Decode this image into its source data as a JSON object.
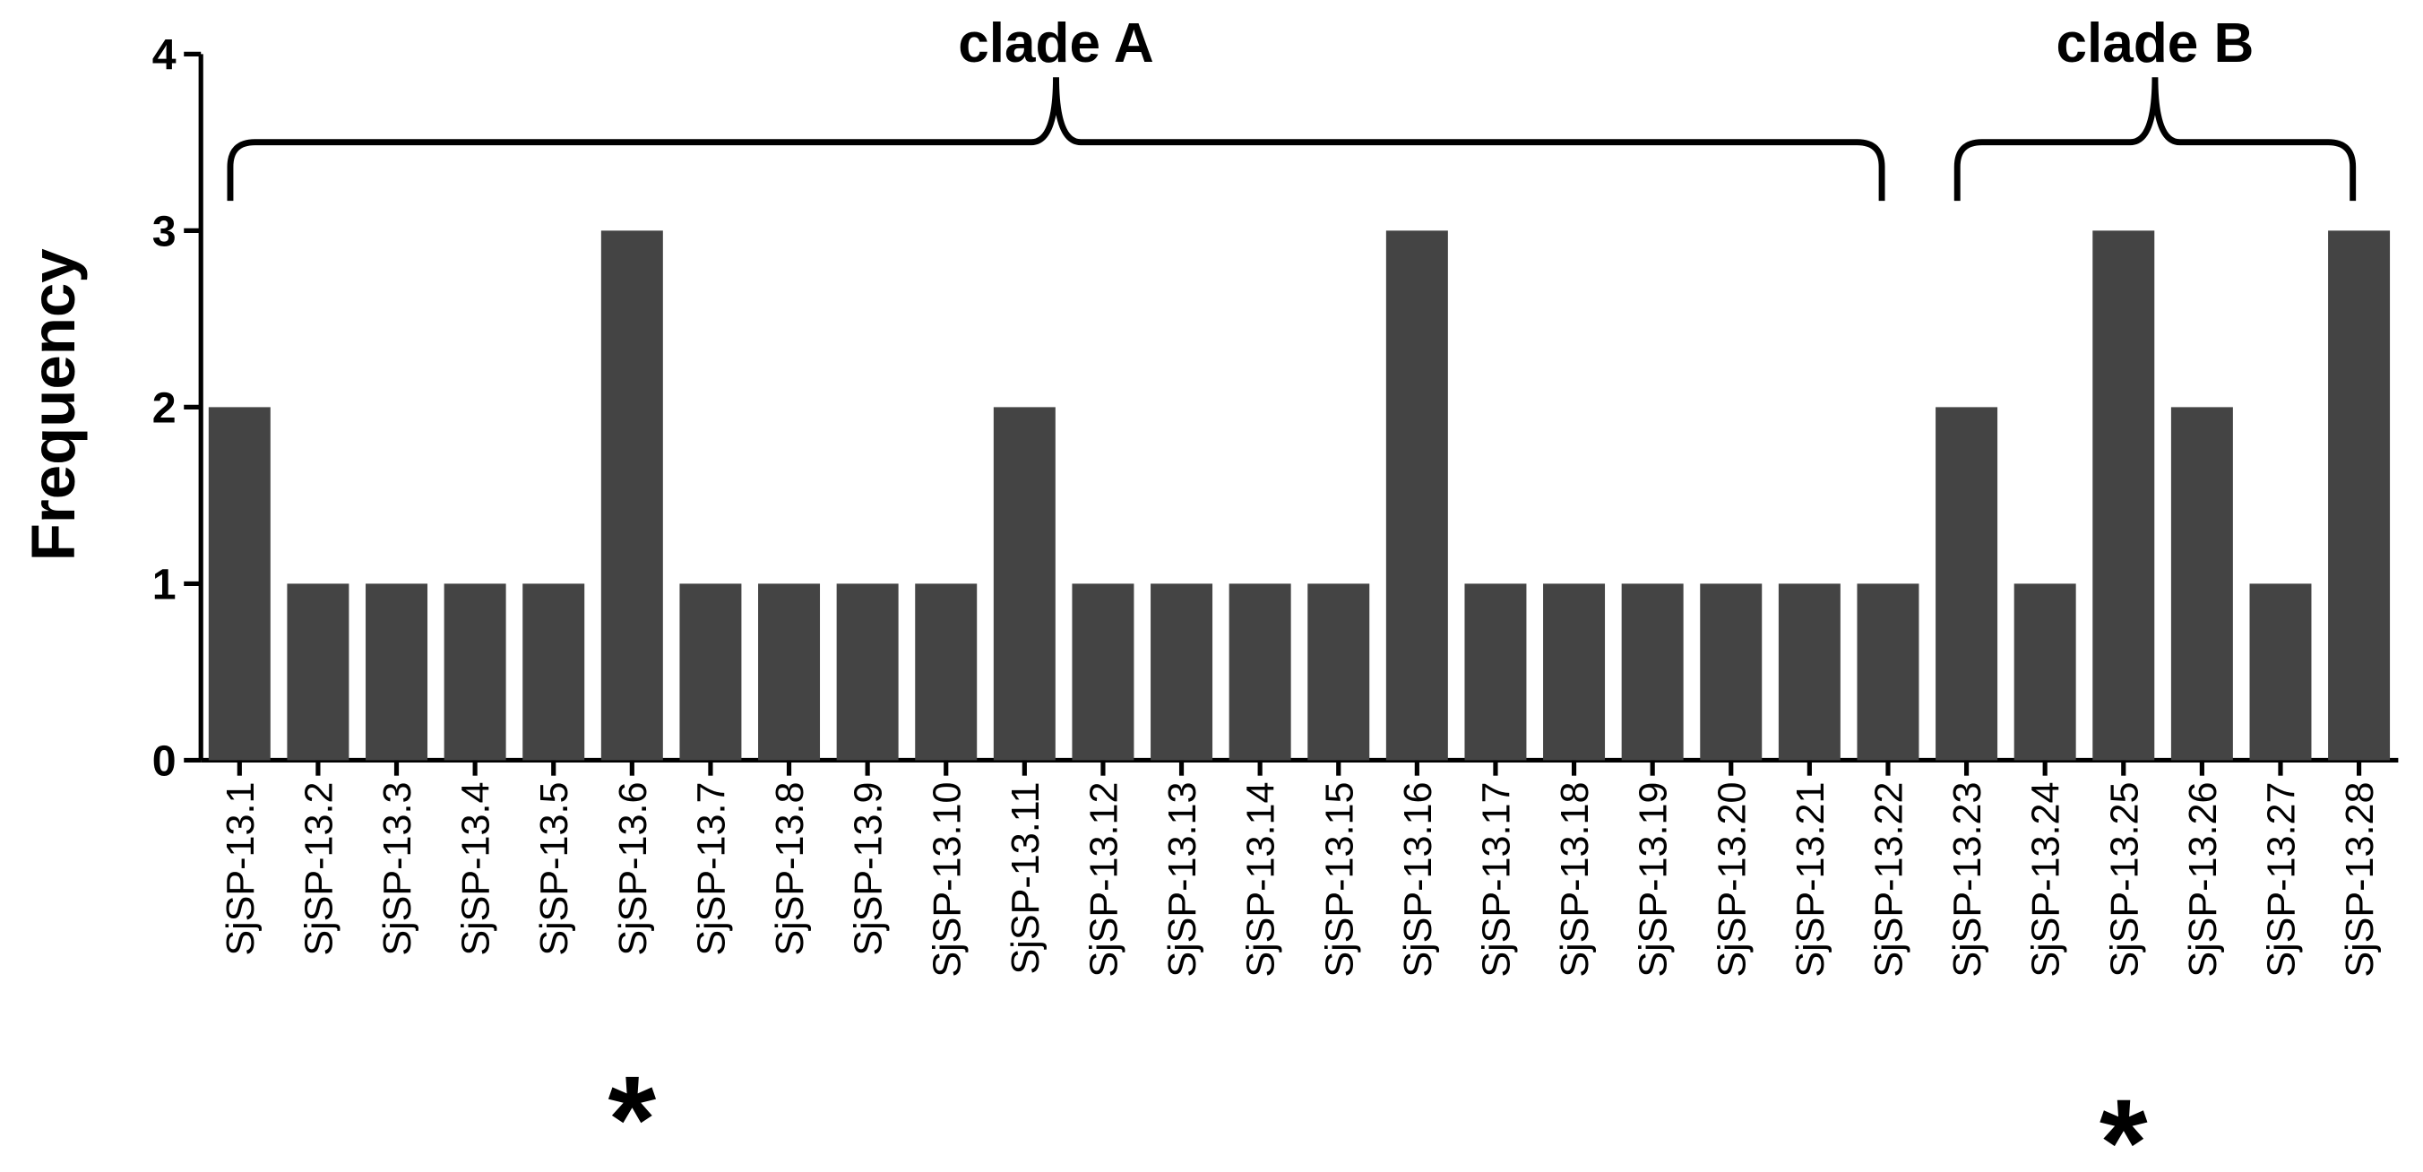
{
  "chart_data": {
    "type": "bar",
    "y_label": "Frequency",
    "categories": [
      "SjSP-13.1",
      "SjSP-13.2",
      "SjSP-13.3",
      "SjSP-13.4",
      "SjSP-13.5",
      "SjSP-13.6",
      "SjSP-13.7",
      "SjSP-13.8",
      "SjSP-13.9",
      "SjSP-13.10",
      "SjSP-13.11",
      "SjSP-13.12",
      "SjSP-13.13",
      "SjSP-13.14",
      "SjSP-13.15",
      "SjSP-13.16",
      "SjSP-13.17",
      "SjSP-13.18",
      "SjSP-13.19",
      "SjSP-13.20",
      "SjSP-13.21",
      "SjSP-13.22",
      "SjSP-13.23",
      "SjSP-13.24",
      "SjSP-13.25",
      "SjSP-13.26",
      "SjSP-13.27",
      "SjSP-13.28"
    ],
    "values": [
      2,
      1,
      1,
      1,
      1,
      3,
      1,
      1,
      1,
      1,
      2,
      1,
      1,
      1,
      1,
      3,
      1,
      1,
      1,
      1,
      1,
      1,
      2,
      1,
      3,
      2,
      1,
      3
    ],
    "color": "#444444",
    "ylim": [
      0,
      4
    ],
    "yticks": [
      0,
      1,
      2,
      3,
      4
    ],
    "grid": false,
    "groups": [
      {
        "label": "clade A",
        "from": "SjSP-13.1",
        "to": "SjSP-13.22"
      },
      {
        "label": "clade B",
        "from": "SjSP-13.23",
        "to": "SjSP-13.28"
      }
    ],
    "markers": [
      {
        "text": "*",
        "category": "SjSP-13.6"
      },
      {
        "text": "*",
        "category": "SjSP-13.25"
      }
    ]
  }
}
